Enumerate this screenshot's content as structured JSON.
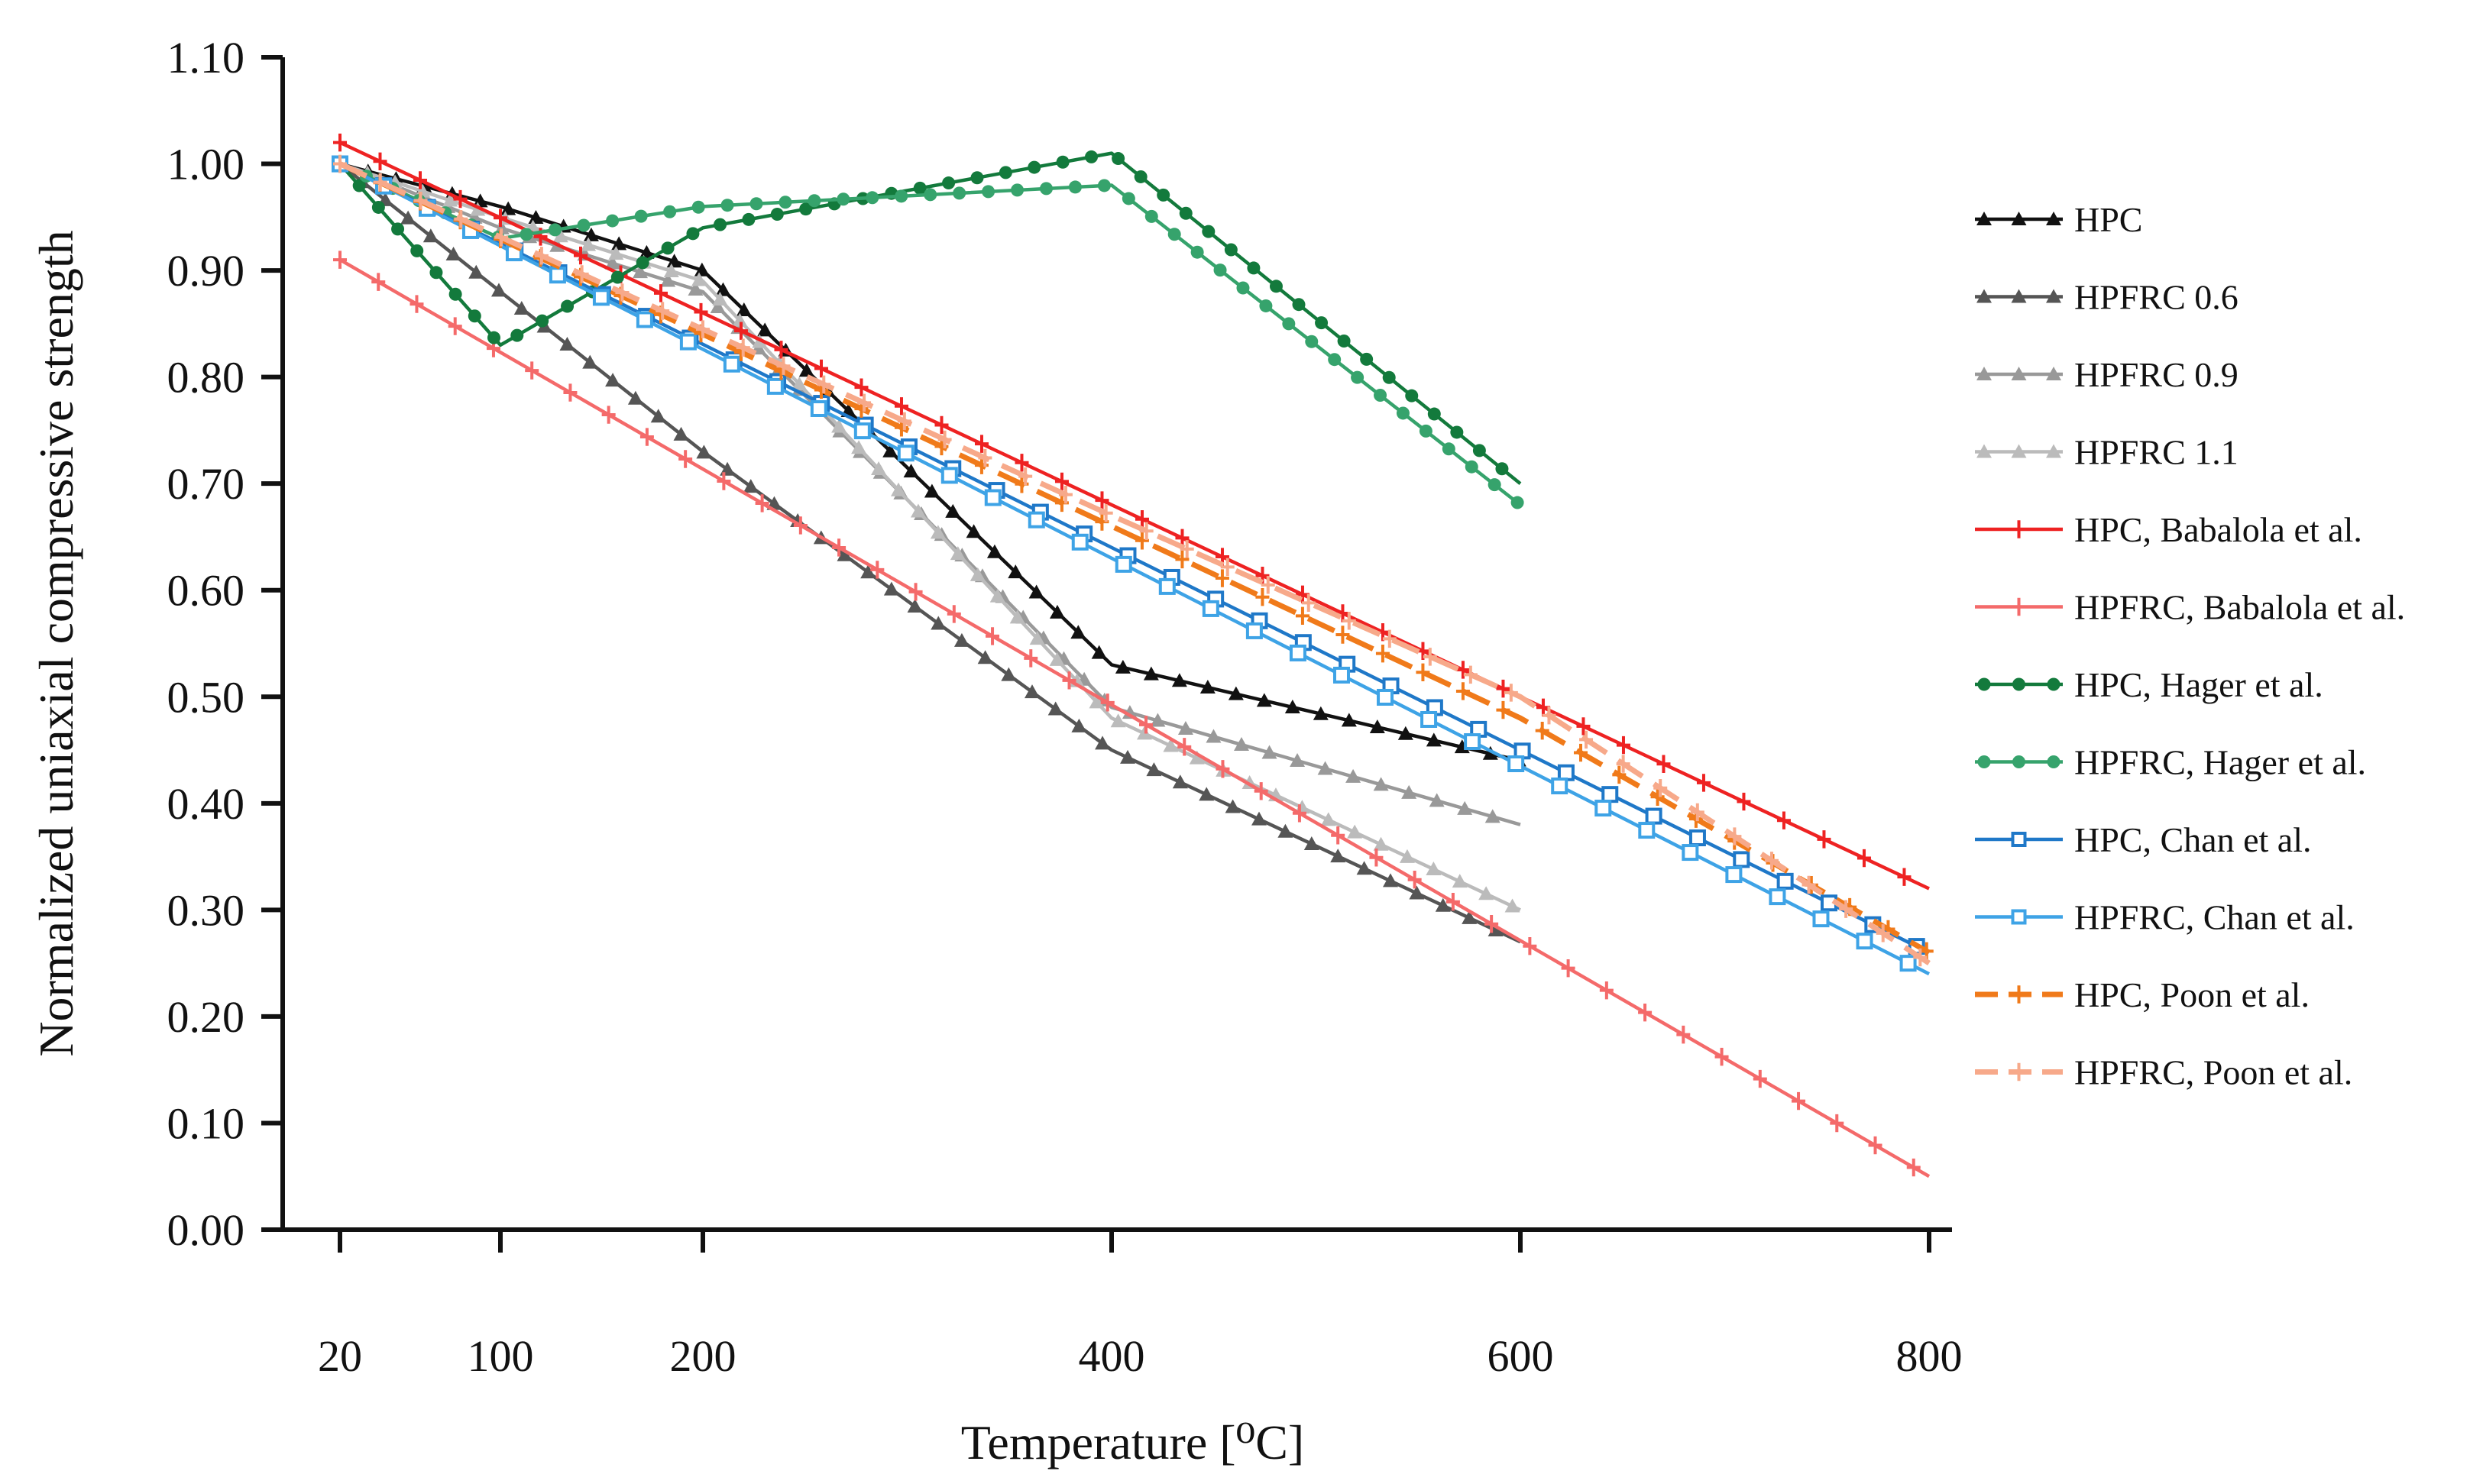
{
  "chart_data": {
    "type": "line",
    "xlabel": "Temperature [⁰C]",
    "ylabel": "Normalized uniaxial compressive strength",
    "x_ticks": [
      "20",
      "100",
      "200",
      "400",
      "600",
      "800"
    ],
    "x_tick_values": [
      20,
      100,
      200,
      400,
      600,
      800
    ],
    "y_ticks": [
      "0.00",
      "0.10",
      "0.20",
      "0.30",
      "0.40",
      "0.50",
      "0.60",
      "0.70",
      "0.80",
      "0.90",
      "1.00",
      "1.10"
    ],
    "ylim": [
      0,
      1.1
    ],
    "x_axis_scale": "piecewise (20, 100, 200, 400, 600, 800)",
    "grid": false,
    "legend_position": "right",
    "series": [
      {
        "name": "HPC",
        "color": "#111111",
        "dash": "solid",
        "marker": "triangle",
        "points": [
          [
            20,
            1.0
          ],
          [
            100,
            0.96
          ],
          [
            200,
            0.9
          ],
          [
            400,
            0.53
          ],
          [
            600,
            0.44
          ]
        ]
      },
      {
        "name": "HPFRC 0.6",
        "color": "#555555",
        "dash": "solid",
        "marker": "triangle",
        "points": [
          [
            20,
            1.0
          ],
          [
            100,
            0.88
          ],
          [
            200,
            0.73
          ],
          [
            400,
            0.45
          ],
          [
            600,
            0.27
          ]
        ]
      },
      {
        "name": "HPFRC 0.9",
        "color": "#999999",
        "dash": "solid",
        "marker": "triangle",
        "points": [
          [
            20,
            1.0
          ],
          [
            100,
            0.94
          ],
          [
            200,
            0.88
          ],
          [
            400,
            0.49
          ],
          [
            600,
            0.38
          ]
        ]
      },
      {
        "name": "HPFRC 1.1",
        "color": "#bbbbbb",
        "dash": "solid",
        "marker": "triangle",
        "points": [
          [
            20,
            1.0
          ],
          [
            100,
            0.95
          ],
          [
            200,
            0.89
          ],
          [
            400,
            0.48
          ],
          [
            600,
            0.3
          ]
        ]
      },
      {
        "name": "HPC, Babalola et al.",
        "color": "#ee2222",
        "dash": "solid",
        "marker": "plus",
        "points": [
          [
            20,
            1.02
          ],
          [
            800,
            0.32
          ]
        ]
      },
      {
        "name": "HPFRC, Babalola et al.",
        "color": "#f46a6a",
        "dash": "solid",
        "marker": "plus",
        "points": [
          [
            20,
            0.91
          ],
          [
            800,
            0.05
          ]
        ]
      },
      {
        "name": "HPC, Hager et al.",
        "color": "#137a3c",
        "dash": "solid",
        "marker": "circle",
        "points": [
          [
            20,
            1.0
          ],
          [
            100,
            0.83
          ],
          [
            200,
            0.94
          ],
          [
            400,
            1.01
          ],
          [
            600,
            0.7
          ]
        ]
      },
      {
        "name": "HPFRC, Hager et al.",
        "color": "#36a36c",
        "dash": "solid",
        "marker": "circle",
        "points": [
          [
            20,
            1.0
          ],
          [
            100,
            0.93
          ],
          [
            200,
            0.96
          ],
          [
            400,
            0.98
          ],
          [
            600,
            0.68
          ]
        ]
      },
      {
        "name": "HPC, Chan et al.",
        "color": "#1f78c8",
        "dash": "solid",
        "marker": "square",
        "points": [
          [
            20,
            1.0
          ],
          [
            400,
            0.64
          ],
          [
            800,
            0.26
          ]
        ]
      },
      {
        "name": "HPFRC, Chan et al.",
        "color": "#3ea3e6",
        "dash": "solid",
        "marker": "square",
        "points": [
          [
            20,
            1.0
          ],
          [
            400,
            0.63
          ],
          [
            800,
            0.24
          ]
        ]
      },
      {
        "name": "HPC, Poon et al.",
        "color": "#f07a1a",
        "dash": "dashed",
        "marker": "plus",
        "points": [
          [
            20,
            1.0
          ],
          [
            400,
            0.66
          ],
          [
            600,
            0.48
          ],
          [
            800,
            0.26
          ]
        ]
      },
      {
        "name": "HPFRC, Poon et al.",
        "color": "#f7a98a",
        "dash": "dashed",
        "marker": "plus",
        "points": [
          [
            20,
            1.0
          ],
          [
            400,
            0.67
          ],
          [
            600,
            0.5
          ],
          [
            800,
            0.25
          ]
        ]
      }
    ]
  }
}
